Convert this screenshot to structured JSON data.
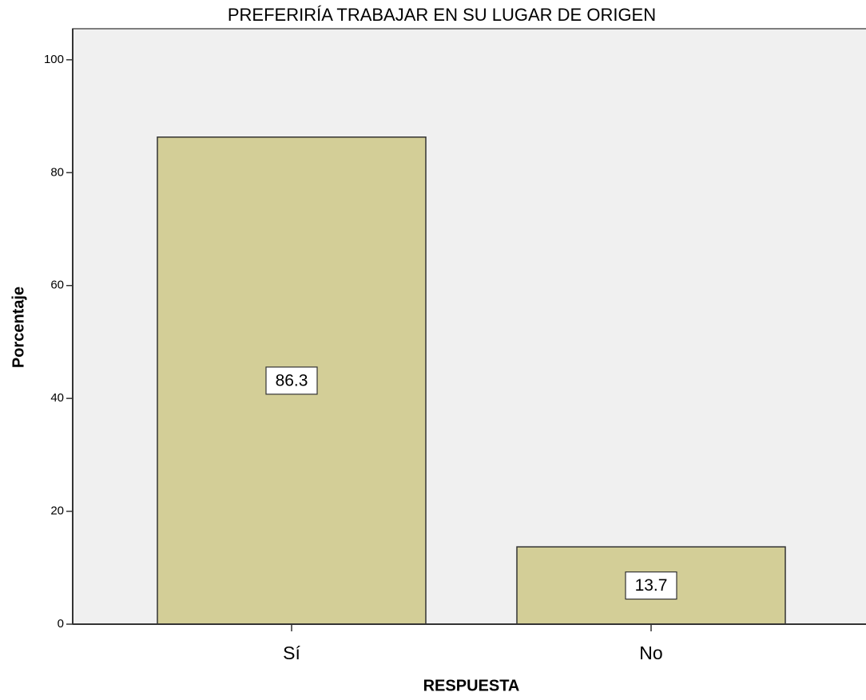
{
  "chart_data": {
    "type": "bar",
    "title": "PREFERIRÍA TRABAJAR EN SU LUGAR DE ORIGEN",
    "x_label": "RESPUESTA",
    "y_label": "Porcentaje",
    "categories": [
      "Sí",
      "No"
    ],
    "values": [
      86.3,
      13.7
    ],
    "color": "#d3ce97",
    "ylim": [
      0,
      105.5
    ],
    "yticks": [
      0,
      20,
      40,
      60,
      80,
      100
    ],
    "grid": false
  }
}
